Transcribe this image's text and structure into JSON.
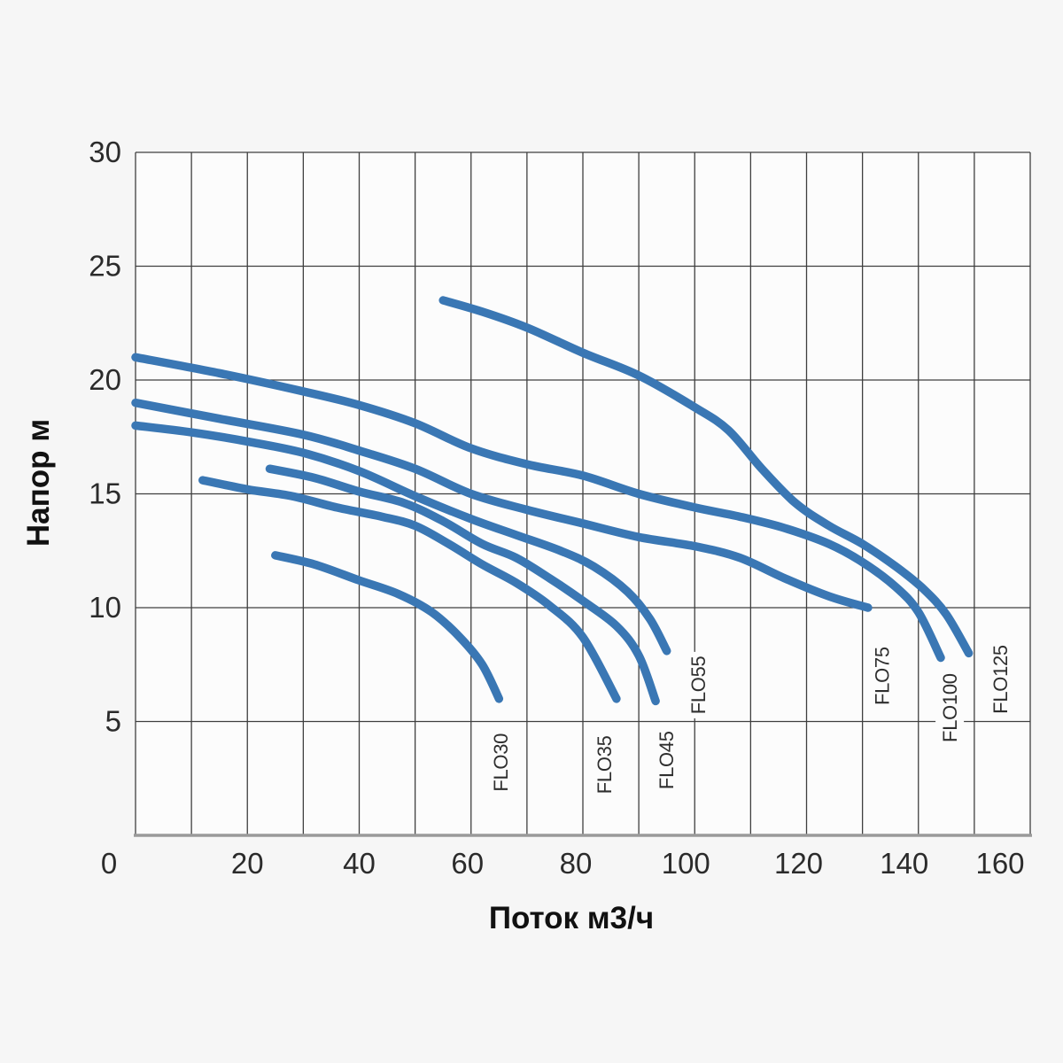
{
  "page": {
    "background": "#f6f6f6",
    "plot_background": "#fcfcfc"
  },
  "chart_data": {
    "type": "line",
    "title": "",
    "xlabel": "Поток м3/ч",
    "ylabel": "Напор м",
    "xlim": [
      0,
      160
    ],
    "ylim": [
      0,
      30
    ],
    "grid": true,
    "grid_x_step": 10,
    "grid_y_step": 5,
    "legend_position": "curve-end-labels",
    "x_ticks": [
      {
        "value": 0,
        "label": "0",
        "dx": -30
      },
      {
        "value": 20,
        "label": "20",
        "dx": 0
      },
      {
        "value": 40,
        "label": "40",
        "dx": 0
      },
      {
        "value": 60,
        "label": "60",
        "dx": -4
      },
      {
        "value": 80,
        "label": "80",
        "dx": -8
      },
      {
        "value": 100,
        "label": "100",
        "dx": -10
      },
      {
        "value": 120,
        "label": "120",
        "dx": -9
      },
      {
        "value": 140,
        "label": "140",
        "dx": -16
      },
      {
        "value": 160,
        "label": "160",
        "dx": -34
      }
    ],
    "y_ticks": [
      {
        "value": 30,
        "label": "30"
      },
      {
        "value": 25,
        "label": "25"
      },
      {
        "value": 20,
        "label": "20"
      },
      {
        "value": 15,
        "label": "15"
      },
      {
        "value": 10,
        "label": "10"
      },
      {
        "value": 5,
        "label": "5"
      }
    ],
    "series": [
      {
        "name": "FLO30",
        "color": "#3a77b4",
        "points": [
          [
            25,
            12.3
          ],
          [
            32,
            11.9
          ],
          [
            40,
            11.2
          ],
          [
            47,
            10.6
          ],
          [
            53,
            9.8
          ],
          [
            58,
            8.7
          ],
          [
            62,
            7.5
          ],
          [
            65,
            6.0
          ]
        ]
      },
      {
        "name": "FLO35",
        "color": "#3a77b4",
        "points": [
          [
            12,
            15.6
          ],
          [
            20,
            15.2
          ],
          [
            28,
            14.9
          ],
          [
            36,
            14.4
          ],
          [
            44,
            14.0
          ],
          [
            50,
            13.6
          ],
          [
            56,
            12.8
          ],
          [
            62,
            11.9
          ],
          [
            68,
            11.1
          ],
          [
            74,
            10.1
          ],
          [
            80,
            8.7
          ],
          [
            86,
            6.0
          ]
        ]
      },
      {
        "name": "FLO45",
        "color": "#3a77b4",
        "points": [
          [
            24,
            16.1
          ],
          [
            32,
            15.7
          ],
          [
            40,
            15.1
          ],
          [
            48,
            14.6
          ],
          [
            55,
            13.8
          ],
          [
            62,
            12.8
          ],
          [
            68,
            12.2
          ],
          [
            74,
            11.3
          ],
          [
            80,
            10.3
          ],
          [
            86,
            9.2
          ],
          [
            90,
            7.9
          ],
          [
            93,
            5.9
          ]
        ]
      },
      {
        "name": "FLO55",
        "color": "#3a77b4",
        "points": [
          [
            0,
            18.0
          ],
          [
            10,
            17.7
          ],
          [
            20,
            17.3
          ],
          [
            30,
            16.8
          ],
          [
            40,
            16.0
          ],
          [
            50,
            14.9
          ],
          [
            60,
            13.9
          ],
          [
            68,
            13.2
          ],
          [
            76,
            12.5
          ],
          [
            82,
            11.8
          ],
          [
            88,
            10.7
          ],
          [
            92,
            9.5
          ],
          [
            95,
            8.1
          ]
        ]
      },
      {
        "name": "FLO75",
        "color": "#3a77b4",
        "points": [
          [
            0,
            19.0
          ],
          [
            15,
            18.3
          ],
          [
            30,
            17.6
          ],
          [
            40,
            16.9
          ],
          [
            50,
            16.1
          ],
          [
            60,
            15.0
          ],
          [
            70,
            14.3
          ],
          [
            80,
            13.7
          ],
          [
            90,
            13.1
          ],
          [
            100,
            12.7
          ],
          [
            108,
            12.2
          ],
          [
            116,
            11.3
          ],
          [
            124,
            10.5
          ],
          [
            131,
            10.0
          ]
        ]
      },
      {
        "name": "FLO100",
        "color": "#3a77b4",
        "points": [
          [
            0,
            21.0
          ],
          [
            15,
            20.3
          ],
          [
            30,
            19.5
          ],
          [
            40,
            18.9
          ],
          [
            50,
            18.1
          ],
          [
            60,
            17.0
          ],
          [
            70,
            16.3
          ],
          [
            80,
            15.8
          ],
          [
            90,
            15.0
          ],
          [
            100,
            14.4
          ],
          [
            108,
            14.0
          ],
          [
            116,
            13.5
          ],
          [
            124,
            12.8
          ],
          [
            130,
            12.0
          ],
          [
            136,
            10.9
          ],
          [
            140,
            9.8
          ],
          [
            144,
            7.8
          ]
        ]
      },
      {
        "name": "FLO125",
        "color": "#3a77b4",
        "points": [
          [
            55,
            23.5
          ],
          [
            62,
            23.0
          ],
          [
            70,
            22.3
          ],
          [
            80,
            21.2
          ],
          [
            90,
            20.2
          ],
          [
            100,
            18.8
          ],
          [
            106,
            17.8
          ],
          [
            112,
            16.1
          ],
          [
            118,
            14.6
          ],
          [
            124,
            13.6
          ],
          [
            130,
            12.8
          ],
          [
            136,
            11.8
          ],
          [
            141,
            10.8
          ],
          [
            145,
            9.7
          ],
          [
            149,
            8.0
          ]
        ]
      }
    ],
    "curve_labels": [
      {
        "text": "FLO30",
        "x": 65.3,
        "y": 3.2
      },
      {
        "text": "FLO35",
        "x": 83.8,
        "y": 3.1
      },
      {
        "text": "FLO45",
        "x": 94.9,
        "y": 3.3
      },
      {
        "text": "FLO55",
        "x": 100.6,
        "y": 6.6
      },
      {
        "text": "FLO75",
        "x": 133.5,
        "y": 7.0
      },
      {
        "text": "FLO100",
        "x": 145.6,
        "y": 5.6
      },
      {
        "text": "FLO125",
        "x": 154.6,
        "y": 6.85
      }
    ]
  },
  "styles": {
    "curve_color": "#3a77b4",
    "grid_color": "#3f3f3f",
    "axis_baseline_color": "#9a9a9a",
    "text_color": "#2b2b2b"
  }
}
